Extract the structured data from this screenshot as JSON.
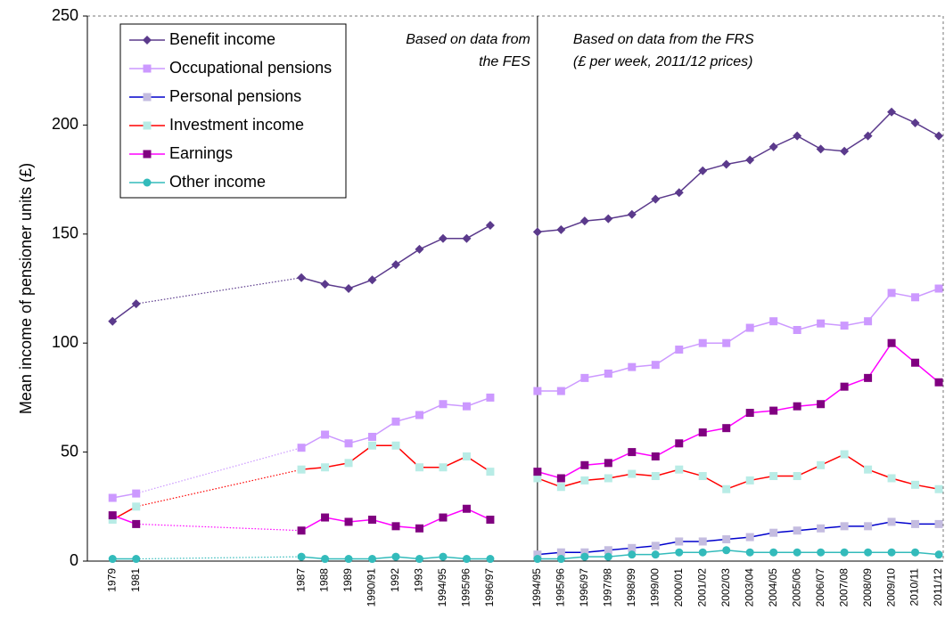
{
  "chart_data": {
    "type": "line",
    "y_label": "Mean income of pensioner units (£)",
    "categories": [
      "1979",
      "1981",
      null,
      null,
      null,
      null,
      null,
      null,
      "1987",
      "1988",
      "1989",
      "1990/91",
      "1992",
      "1993",
      "1994/95",
      "1995/96",
      "1996/97",
      null,
      "1994/95",
      "1995/96",
      "1996/97",
      "1997/98",
      "1998/99",
      "1999/00",
      "2000/01",
      "2001/02",
      "2002/03",
      "2003/04",
      "2004/05",
      "2005/06",
      "2006/07",
      "2007/08",
      "2008/09",
      "2009/10",
      "2010/11",
      "2011/12"
    ],
    "ylim": [
      0,
      250
    ],
    "yticks": [
      0,
      50,
      100,
      150,
      200,
      250
    ],
    "grid": false,
    "legend": "top-left",
    "annotations": [
      [
        "Based on data from",
        "the FES"
      ],
      [
        "Based on data from the FRS",
        "(£ per week, 2011/12 prices)"
      ]
    ],
    "series": [
      {
        "name": "Benefit income",
        "color": "#5b3a8c",
        "marker_color": "#5b3a8c",
        "marker": "diamond",
        "values": [
          110,
          118,
          null,
          null,
          null,
          null,
          null,
          null,
          130,
          127,
          125,
          129,
          136,
          143,
          148,
          148,
          154,
          null,
          151,
          152,
          156,
          157,
          159,
          166,
          169,
          179,
          182,
          184,
          190,
          195,
          189,
          188,
          195,
          206,
          201,
          195
        ]
      },
      {
        "name": "Occupational pensions",
        "color": "#cc99ff",
        "marker_color": "#cc99ff",
        "marker": "square",
        "values": [
          29,
          31,
          null,
          null,
          null,
          null,
          null,
          null,
          52,
          58,
          54,
          57,
          64,
          67,
          72,
          71,
          75,
          null,
          78,
          78,
          84,
          86,
          89,
          90,
          97,
          100,
          100,
          107,
          110,
          106,
          109,
          108,
          110,
          123,
          121,
          125
        ]
      },
      {
        "name": "Personal pensions",
        "color": "#0000cc",
        "marker_color": "#c4bce0",
        "marker": "square",
        "values": [
          null,
          null,
          null,
          null,
          null,
          null,
          null,
          null,
          null,
          null,
          null,
          null,
          null,
          null,
          null,
          null,
          null,
          null,
          3,
          4,
          4,
          5,
          6,
          7,
          9,
          9,
          10,
          11,
          13,
          14,
          15,
          16,
          16,
          18,
          17,
          17
        ]
      },
      {
        "name": "Investment income",
        "color": "#ff0000",
        "marker_color": "#b8ece6",
        "marker": "square",
        "values": [
          19,
          25,
          null,
          null,
          null,
          null,
          null,
          null,
          42,
          43,
          45,
          53,
          53,
          43,
          43,
          48,
          41,
          null,
          38,
          34,
          37,
          38,
          40,
          39,
          42,
          39,
          33,
          37,
          39,
          39,
          44,
          49,
          42,
          38,
          35,
          33
        ]
      },
      {
        "name": "Earnings",
        "color": "#ff00ff",
        "marker_color": "#800080",
        "marker": "square",
        "values": [
          21,
          17,
          null,
          null,
          null,
          null,
          null,
          null,
          14,
          20,
          18,
          19,
          16,
          15,
          20,
          24,
          19,
          null,
          41,
          38,
          44,
          45,
          50,
          48,
          54,
          59,
          61,
          68,
          69,
          71,
          72,
          80,
          84,
          100,
          91,
          82
        ]
      },
      {
        "name": "Other income",
        "color": "#33bbbb",
        "marker_color": "#33bbbb",
        "marker": "circle",
        "values": [
          1,
          1,
          null,
          null,
          null,
          null,
          null,
          null,
          2,
          1,
          1,
          1,
          2,
          1,
          2,
          1,
          1,
          null,
          1,
          1,
          2,
          2,
          3,
          3,
          4,
          4,
          5,
          4,
          4,
          4,
          4,
          4,
          4,
          4,
          4,
          3
        ]
      }
    ]
  }
}
